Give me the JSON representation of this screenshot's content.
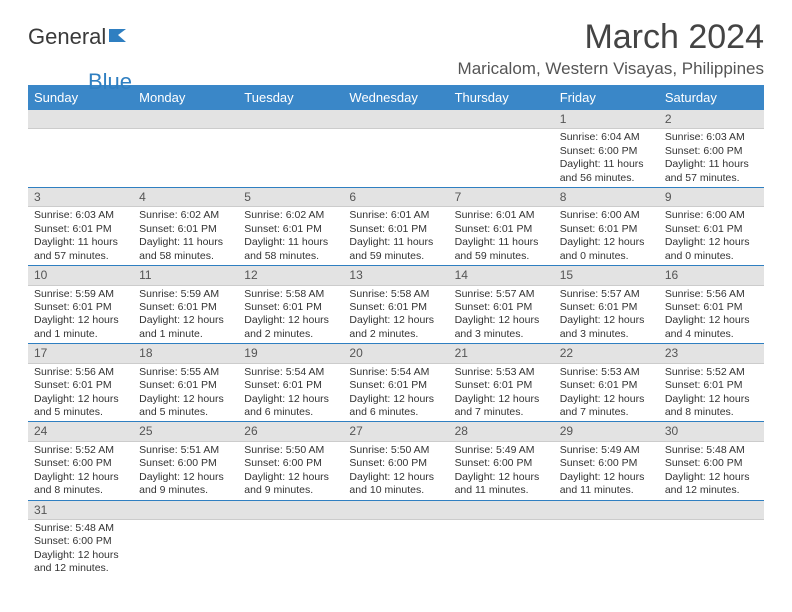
{
  "logo": {
    "text1": "General",
    "text2": "Blue"
  },
  "title": "March 2024",
  "subtitle": "Maricalom, Western Visayas, Philippines",
  "colors": {
    "header_bg": "#3a87c8",
    "header_fg": "#ffffff",
    "daynum_bg": "#e3e3e3",
    "border": "#2f7fc1",
    "text": "#333333"
  },
  "dayNames": [
    "Sunday",
    "Monday",
    "Tuesday",
    "Wednesday",
    "Thursday",
    "Friday",
    "Saturday"
  ],
  "weeks": [
    [
      {
        "n": "",
        "r": "",
        "s": "",
        "d": ""
      },
      {
        "n": "",
        "r": "",
        "s": "",
        "d": ""
      },
      {
        "n": "",
        "r": "",
        "s": "",
        "d": ""
      },
      {
        "n": "",
        "r": "",
        "s": "",
        "d": ""
      },
      {
        "n": "",
        "r": "",
        "s": "",
        "d": ""
      },
      {
        "n": "1",
        "r": "Sunrise: 6:04 AM",
        "s": "Sunset: 6:00 PM",
        "d": "Daylight: 11 hours and 56 minutes."
      },
      {
        "n": "2",
        "r": "Sunrise: 6:03 AM",
        "s": "Sunset: 6:00 PM",
        "d": "Daylight: 11 hours and 57 minutes."
      }
    ],
    [
      {
        "n": "3",
        "r": "Sunrise: 6:03 AM",
        "s": "Sunset: 6:01 PM",
        "d": "Daylight: 11 hours and 57 minutes."
      },
      {
        "n": "4",
        "r": "Sunrise: 6:02 AM",
        "s": "Sunset: 6:01 PM",
        "d": "Daylight: 11 hours and 58 minutes."
      },
      {
        "n": "5",
        "r": "Sunrise: 6:02 AM",
        "s": "Sunset: 6:01 PM",
        "d": "Daylight: 11 hours and 58 minutes."
      },
      {
        "n": "6",
        "r": "Sunrise: 6:01 AM",
        "s": "Sunset: 6:01 PM",
        "d": "Daylight: 11 hours and 59 minutes."
      },
      {
        "n": "7",
        "r": "Sunrise: 6:01 AM",
        "s": "Sunset: 6:01 PM",
        "d": "Daylight: 11 hours and 59 minutes."
      },
      {
        "n": "8",
        "r": "Sunrise: 6:00 AM",
        "s": "Sunset: 6:01 PM",
        "d": "Daylight: 12 hours and 0 minutes."
      },
      {
        "n": "9",
        "r": "Sunrise: 6:00 AM",
        "s": "Sunset: 6:01 PM",
        "d": "Daylight: 12 hours and 0 minutes."
      }
    ],
    [
      {
        "n": "10",
        "r": "Sunrise: 5:59 AM",
        "s": "Sunset: 6:01 PM",
        "d": "Daylight: 12 hours and 1 minute."
      },
      {
        "n": "11",
        "r": "Sunrise: 5:59 AM",
        "s": "Sunset: 6:01 PM",
        "d": "Daylight: 12 hours and 1 minute."
      },
      {
        "n": "12",
        "r": "Sunrise: 5:58 AM",
        "s": "Sunset: 6:01 PM",
        "d": "Daylight: 12 hours and 2 minutes."
      },
      {
        "n": "13",
        "r": "Sunrise: 5:58 AM",
        "s": "Sunset: 6:01 PM",
        "d": "Daylight: 12 hours and 2 minutes."
      },
      {
        "n": "14",
        "r": "Sunrise: 5:57 AM",
        "s": "Sunset: 6:01 PM",
        "d": "Daylight: 12 hours and 3 minutes."
      },
      {
        "n": "15",
        "r": "Sunrise: 5:57 AM",
        "s": "Sunset: 6:01 PM",
        "d": "Daylight: 12 hours and 3 minutes."
      },
      {
        "n": "16",
        "r": "Sunrise: 5:56 AM",
        "s": "Sunset: 6:01 PM",
        "d": "Daylight: 12 hours and 4 minutes."
      }
    ],
    [
      {
        "n": "17",
        "r": "Sunrise: 5:56 AM",
        "s": "Sunset: 6:01 PM",
        "d": "Daylight: 12 hours and 5 minutes."
      },
      {
        "n": "18",
        "r": "Sunrise: 5:55 AM",
        "s": "Sunset: 6:01 PM",
        "d": "Daylight: 12 hours and 5 minutes."
      },
      {
        "n": "19",
        "r": "Sunrise: 5:54 AM",
        "s": "Sunset: 6:01 PM",
        "d": "Daylight: 12 hours and 6 minutes."
      },
      {
        "n": "20",
        "r": "Sunrise: 5:54 AM",
        "s": "Sunset: 6:01 PM",
        "d": "Daylight: 12 hours and 6 minutes."
      },
      {
        "n": "21",
        "r": "Sunrise: 5:53 AM",
        "s": "Sunset: 6:01 PM",
        "d": "Daylight: 12 hours and 7 minutes."
      },
      {
        "n": "22",
        "r": "Sunrise: 5:53 AM",
        "s": "Sunset: 6:01 PM",
        "d": "Daylight: 12 hours and 7 minutes."
      },
      {
        "n": "23",
        "r": "Sunrise: 5:52 AM",
        "s": "Sunset: 6:01 PM",
        "d": "Daylight: 12 hours and 8 minutes."
      }
    ],
    [
      {
        "n": "24",
        "r": "Sunrise: 5:52 AM",
        "s": "Sunset: 6:00 PM",
        "d": "Daylight: 12 hours and 8 minutes."
      },
      {
        "n": "25",
        "r": "Sunrise: 5:51 AM",
        "s": "Sunset: 6:00 PM",
        "d": "Daylight: 12 hours and 9 minutes."
      },
      {
        "n": "26",
        "r": "Sunrise: 5:50 AM",
        "s": "Sunset: 6:00 PM",
        "d": "Daylight: 12 hours and 9 minutes."
      },
      {
        "n": "27",
        "r": "Sunrise: 5:50 AM",
        "s": "Sunset: 6:00 PM",
        "d": "Daylight: 12 hours and 10 minutes."
      },
      {
        "n": "28",
        "r": "Sunrise: 5:49 AM",
        "s": "Sunset: 6:00 PM",
        "d": "Daylight: 12 hours and 11 minutes."
      },
      {
        "n": "29",
        "r": "Sunrise: 5:49 AM",
        "s": "Sunset: 6:00 PM",
        "d": "Daylight: 12 hours and 11 minutes."
      },
      {
        "n": "30",
        "r": "Sunrise: 5:48 AM",
        "s": "Sunset: 6:00 PM",
        "d": "Daylight: 12 hours and 12 minutes."
      }
    ],
    [
      {
        "n": "31",
        "r": "Sunrise: 5:48 AM",
        "s": "Sunset: 6:00 PM",
        "d": "Daylight: 12 hours and 12 minutes."
      },
      {
        "n": "",
        "r": "",
        "s": "",
        "d": ""
      },
      {
        "n": "",
        "r": "",
        "s": "",
        "d": ""
      },
      {
        "n": "",
        "r": "",
        "s": "",
        "d": ""
      },
      {
        "n": "",
        "r": "",
        "s": "",
        "d": ""
      },
      {
        "n": "",
        "r": "",
        "s": "",
        "d": ""
      },
      {
        "n": "",
        "r": "",
        "s": "",
        "d": ""
      }
    ]
  ]
}
